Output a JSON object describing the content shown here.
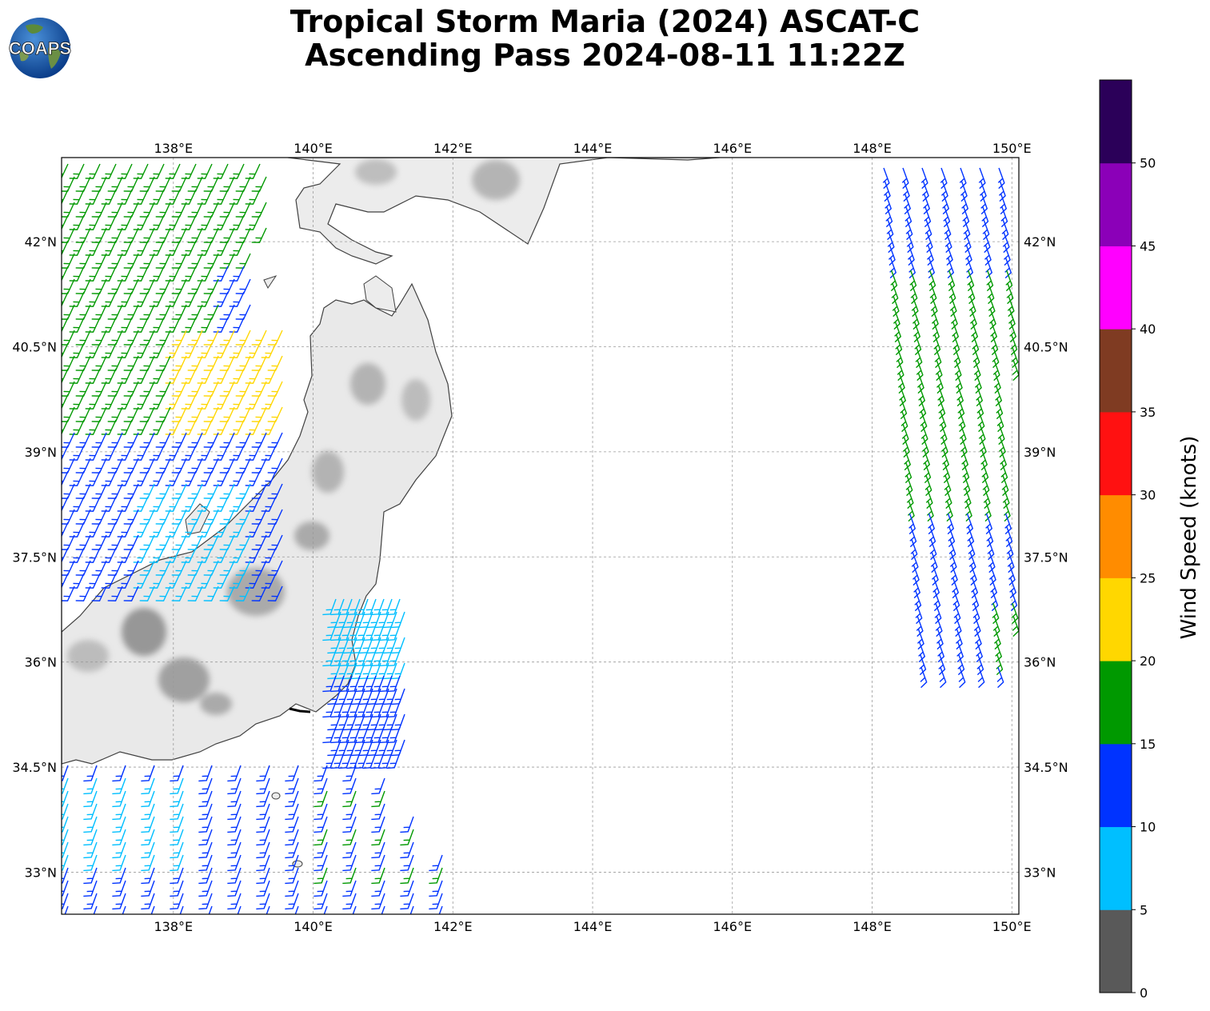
{
  "title": {
    "line1": "Tropical Storm Maria (2024) ASCAT-C",
    "line2": "Ascending Pass 2024-08-11 11:22Z"
  },
  "logo": {
    "text": "COAPS"
  },
  "map": {
    "projection": "plate-carree",
    "lon_range": [
      136.4,
      150.1
    ],
    "lat_range": [
      32.4,
      43.2
    ],
    "lon_ticks": [
      {
        "value": 138,
        "label": "138°E"
      },
      {
        "value": 140,
        "label": "140°E"
      },
      {
        "value": 142,
        "label": "142°E"
      },
      {
        "value": 144,
        "label": "144°E"
      },
      {
        "value": 146,
        "label": "146°E"
      },
      {
        "value": 148,
        "label": "148°E"
      },
      {
        "value": 150,
        "label": "150°E"
      }
    ],
    "lat_ticks": [
      {
        "value": 33,
        "label": "33°N"
      },
      {
        "value": 34.5,
        "label": "34.5°N"
      },
      {
        "value": 36,
        "label": "36°N"
      },
      {
        "value": 37.5,
        "label": "37.5°N"
      },
      {
        "value": 39,
        "label": "39°N"
      },
      {
        "value": 40.5,
        "label": "40.5°N"
      },
      {
        "value": 42,
        "label": "42°N"
      }
    ],
    "grid": true,
    "storm_track_color": "#000000"
  },
  "colorbar": {
    "label": "Wind Speed (knots)",
    "ticks": [
      "0",
      "5",
      "10",
      "15",
      "20",
      "25",
      "30",
      "35",
      "40",
      "45",
      "50"
    ],
    "colors": [
      "#595959",
      "#00bfff",
      "#0033ff",
      "#009900",
      "#ffd700",
      "#ff8c00",
      "#ff1111",
      "#7f3b22",
      "#ff00ff",
      "#8b00b8",
      "#2b0059"
    ]
  }
}
